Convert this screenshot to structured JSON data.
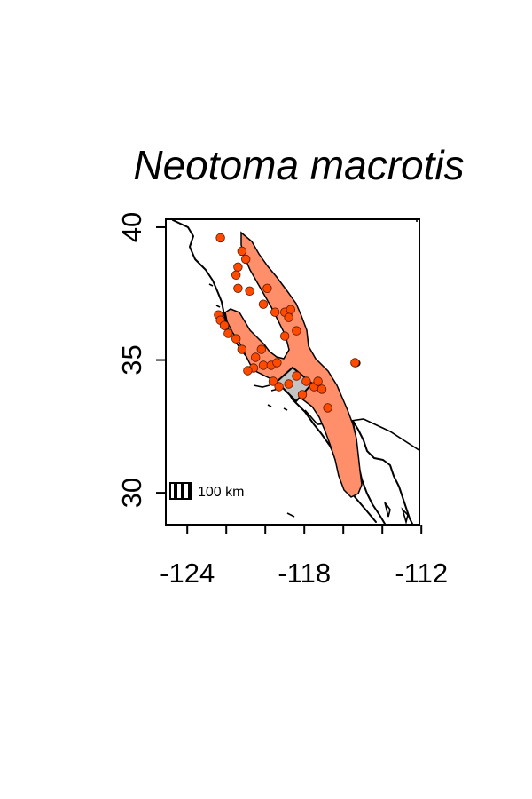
{
  "title": "Neotoma macrotis",
  "map": {
    "x_ticks": [
      -124,
      -122,
      -120,
      -118,
      -116,
      -114,
      -112
    ],
    "x_tick_labels": [
      "-124",
      "-118",
      "-112"
    ],
    "y_ticks": [
      30,
      35,
      40
    ],
    "y_tick_labels": [
      "30",
      "35",
      "40"
    ],
    "x_range": [
      -125.1,
      -112.1
    ],
    "y_range": [
      28.8,
      40.3
    ],
    "scale_bar_label": "100 km",
    "colors": {
      "range_fill": "#ff8f6a",
      "range_stroke": "#000000",
      "point_fill": "#ff4a00",
      "point_stroke": "#5a1a00",
      "study_area_fill": "#c4c4c4"
    },
    "occurrence_points": [
      [
        -122.3,
        39.6
      ],
      [
        -121.2,
        39.1
      ],
      [
        -121.0,
        38.8
      ],
      [
        -121.4,
        38.5
      ],
      [
        -121.5,
        38.2
      ],
      [
        -121.4,
        37.7
      ],
      [
        -120.8,
        37.6
      ],
      [
        -119.9,
        37.7
      ],
      [
        -120.1,
        37.1
      ],
      [
        -119.5,
        36.8
      ],
      [
        -119.0,
        36.8
      ],
      [
        -118.7,
        36.9
      ],
      [
        -118.8,
        36.6
      ],
      [
        -118.4,
        36.1
      ],
      [
        -119.0,
        35.9
      ],
      [
        -122.4,
        36.7
      ],
      [
        -122.3,
        36.5
      ],
      [
        -122.1,
        36.3
      ],
      [
        -121.9,
        36.0
      ],
      [
        -121.5,
        35.8
      ],
      [
        -121.2,
        35.4
      ],
      [
        -120.5,
        35.1
      ],
      [
        -120.2,
        35.4
      ],
      [
        -120.6,
        34.7
      ],
      [
        -120.1,
        34.8
      ],
      [
        -119.7,
        34.8
      ],
      [
        -119.4,
        34.9
      ],
      [
        -120.9,
        34.6
      ],
      [
        -119.6,
        34.2
      ],
      [
        -119.3,
        34.0
      ],
      [
        -118.8,
        34.1
      ],
      [
        -118.4,
        34.4
      ],
      [
        -117.9,
        34.2
      ],
      [
        -117.5,
        34.0
      ],
      [
        -117.3,
        34.2
      ],
      [
        -117.1,
        33.9
      ],
      [
        -116.8,
        33.2
      ],
      [
        -115.4,
        34.9
      ],
      [
        -118.1,
        33.7
      ]
    ]
  }
}
